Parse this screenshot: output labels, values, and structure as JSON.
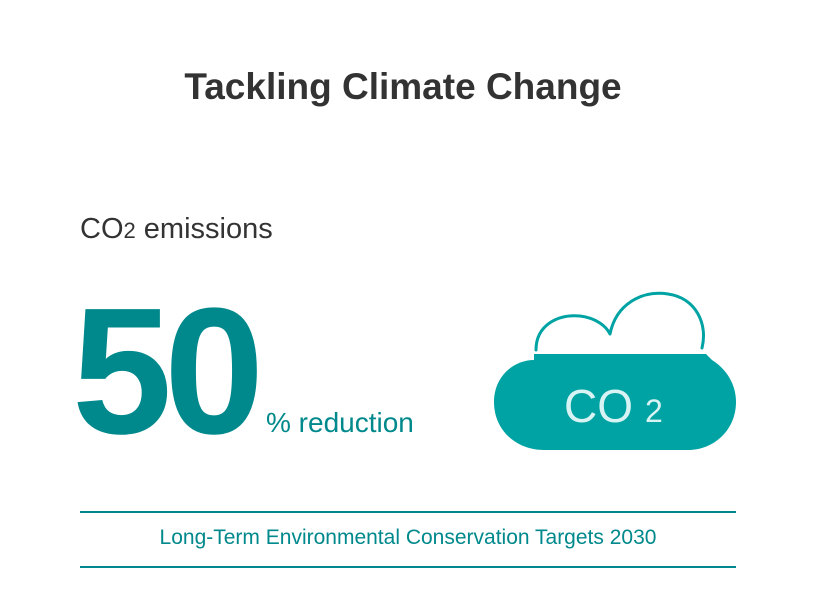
{
  "title": "Tackling Climate Change",
  "metric": {
    "label_main": "CO",
    "label_sub": "2",
    "label_rest": " emissions",
    "value": "50",
    "unit": "% reduction"
  },
  "cloud": {
    "text_main": "CO",
    "text_sub": "2",
    "icon": "cloud-icon"
  },
  "footer": "Long-Term Environmental Conservation Targets 2030",
  "colors": {
    "accent": "#00898c",
    "cloud_fill": "#00a3a3",
    "cloud_text": "#d8f3f3",
    "text": "#333333"
  }
}
